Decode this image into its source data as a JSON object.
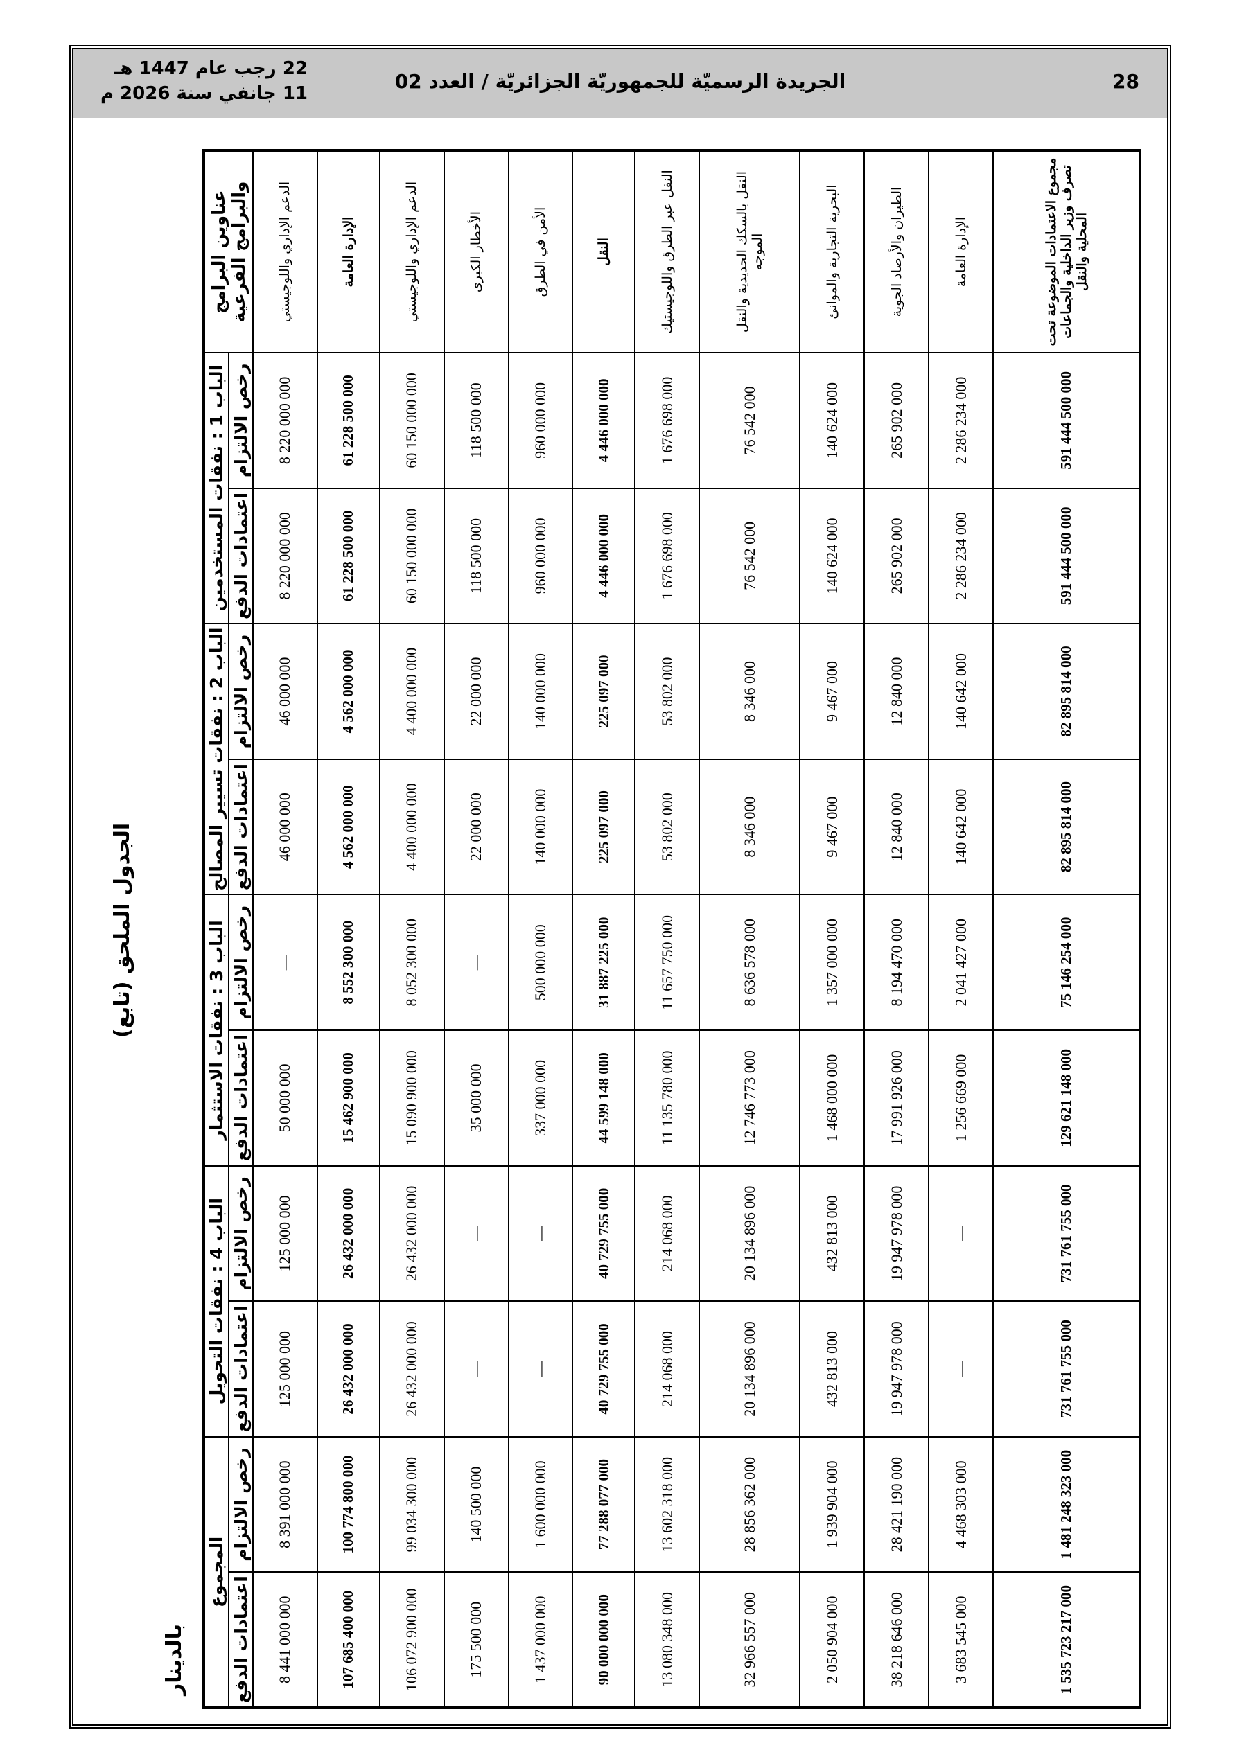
{
  "header": {
    "page_number": "28",
    "title": "الجريدة الرسميّة للجمهوريّة الجزائريّة / العدد 02",
    "date_hijri": "22 رجب عام 1447 هـ",
    "date_gregorian": "11 جانفي سنة 2026 م"
  },
  "caption": "الجدول الملحق (تابع)",
  "unit": "بالدينار",
  "table": {
    "title_header": "عناوين البرامج والبرامج الفرعية",
    "groups": [
      "الباب 1 : نفقات المستخدمين",
      "الباب 2 : نفقات تسيير المصالح",
      "الباب 3 : نفقات الاستثمار",
      "الباب 4 : نفقات التحويل",
      "المجموع"
    ],
    "subheaders": [
      "رخص الالتزام",
      "اعتمادات الدفع"
    ],
    "rows": [
      {
        "cells": [
          "الدعم الإداري واللوجيستي",
          "8 220 000 000",
          "8 220 000 000",
          "46 000 000",
          "46 000 000",
          "—",
          "50 000 000",
          "125 000 000",
          "125 000 000",
          "8 391 000 000",
          "8 441 000 000"
        ]
      },
      {
        "cells": [
          "الإدارة العامة",
          "61 228 500 000",
          "61 228 500 000",
          "4 562 000 000",
          "4 562 000 000",
          "8 552 300 000",
          "15 462 900 000",
          "26 432 000 000",
          "26 432 000 000",
          "100 774 800 000",
          "107 685 400 000"
        ],
        "bold": true
      },
      {
        "cells": [
          "الدعم الإداري واللوجيستي",
          "60 150 000 000",
          "60 150 000 000",
          "4 400 000 000",
          "4 400 000 000",
          "8 052 300 000",
          "15 090 900 000",
          "26 432 000 000",
          "26 432 000 000",
          "99 034 300 000",
          "106 072 900 000"
        ]
      },
      {
        "cells": [
          "الأخطار الكبرى",
          "118 500 000",
          "118 500 000",
          "22 000 000",
          "22 000 000",
          "—",
          "35 000 000",
          "—",
          "—",
          "140 500 000",
          "175 500 000"
        ]
      },
      {
        "cells": [
          "الأمن في الطرق",
          "960 000 000",
          "960 000 000",
          "140 000 000",
          "140 000 000",
          "500 000 000",
          "337 000 000",
          "—",
          "—",
          "1 600 000 000",
          "1 437 000 000"
        ]
      },
      {
        "cells": [
          "النقل",
          "4 446 000 000",
          "4 446 000 000",
          "225 097 000",
          "225 097 000",
          "31 887 225 000",
          "44 599 148 000",
          "40 729 755 000",
          "40 729 755 000",
          "77 288 077 000",
          "90 000 000 000"
        ],
        "bold": true
      },
      {
        "cells": [
          "النقل عبر الطرق واللوجيستيك",
          "1 676 698 000",
          "1 676 698 000",
          "53 802 000",
          "53 802 000",
          "11 657 750 000",
          "11 135 780 000",
          "214 068 000",
          "214 068 000",
          "13 602 318 000",
          "13 080 348 000"
        ]
      },
      {
        "cells": [
          "النقل بالسكك الحديدية والنقل الموجه",
          "76 542 000",
          "76 542 000",
          "8 346 000",
          "8 346 000",
          "8 636 578 000",
          "12 746 773 000",
          "20 134 896 000",
          "20 134 896 000",
          "28 856 362 000",
          "32 966 557 000"
        ]
      },
      {
        "cells": [
          "البحرية التجارية والموانئ",
          "140 624 000",
          "140 624 000",
          "9 467 000",
          "9 467 000",
          "1 357 000 000",
          "1 468 000 000",
          "432 813 000",
          "432 813 000",
          "1 939 904 000",
          "2 050 904 000"
        ]
      },
      {
        "cells": [
          "الطيران والأرصاد الجوية",
          "265 902 000",
          "265 902 000",
          "12 840 000",
          "12 840 000",
          "8 194 470 000",
          "17 991 926 000",
          "19 947 978 000",
          "19 947 978 000",
          "28 421 190 000",
          "38 218 646 000"
        ]
      },
      {
        "cells": [
          "الإدارة العامة",
          "2 286 234 000",
          "2 286 234 000",
          "140 642 000",
          "140 642 000",
          "2 041 427 000",
          "1 256 669 000",
          "—",
          "—",
          "4 468 303 000",
          "3 683 545 000"
        ]
      },
      {
        "cells": [
          "مجموع الاعتمادات الموضوعة تحت تصرف وزير الداخلية والجماعات المحلية والنقل",
          "591 444 500 000",
          "591 444 500 000",
          "82 895 814 000",
          "82 895 814 000",
          "75 146 254 000",
          "129 621 148 000",
          "731 761 755 000",
          "731 761 755 000",
          "1 481 248 323 000",
          "1 535 723 217 000"
        ],
        "bold": true
      }
    ]
  }
}
